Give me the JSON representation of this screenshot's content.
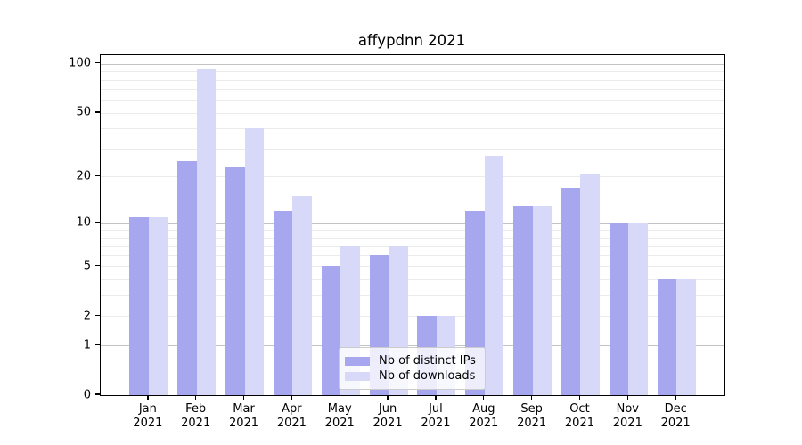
{
  "chart_data": {
    "type": "bar",
    "title": "affypdnn 2021",
    "year": "2021",
    "months": [
      "Jan",
      "Feb",
      "Mar",
      "Apr",
      "May",
      "Jun",
      "Jul",
      "Aug",
      "Sep",
      "Oct",
      "Nov",
      "Dec"
    ],
    "series": [
      {
        "name": "Nb of distinct IPs",
        "color": "#a7a7f0",
        "values": [
          11,
          25,
          23,
          12,
          5,
          6,
          2,
          12,
          13,
          17,
          10,
          4
        ]
      },
      {
        "name": "Nb of downloads",
        "color": "#d8d8f9",
        "values": [
          11,
          92,
          40,
          15,
          7,
          7,
          2,
          27,
          13,
          21,
          10,
          4
        ]
      }
    ],
    "y_ticks": [
      0,
      1,
      2,
      5,
      10,
      20,
      50,
      100
    ],
    "y_major_gridlines": [
      1,
      10,
      100
    ],
    "y_minor_gridlines": [
      2,
      3,
      4,
      5,
      6,
      7,
      8,
      9,
      20,
      30,
      40,
      50,
      60,
      70,
      80,
      90
    ],
    "scale": "log10(value+1)",
    "ylim": [
      0,
      113
    ],
    "grid": "on",
    "legend_position": "lower center",
    "xlabel": "",
    "ylabel": ""
  }
}
